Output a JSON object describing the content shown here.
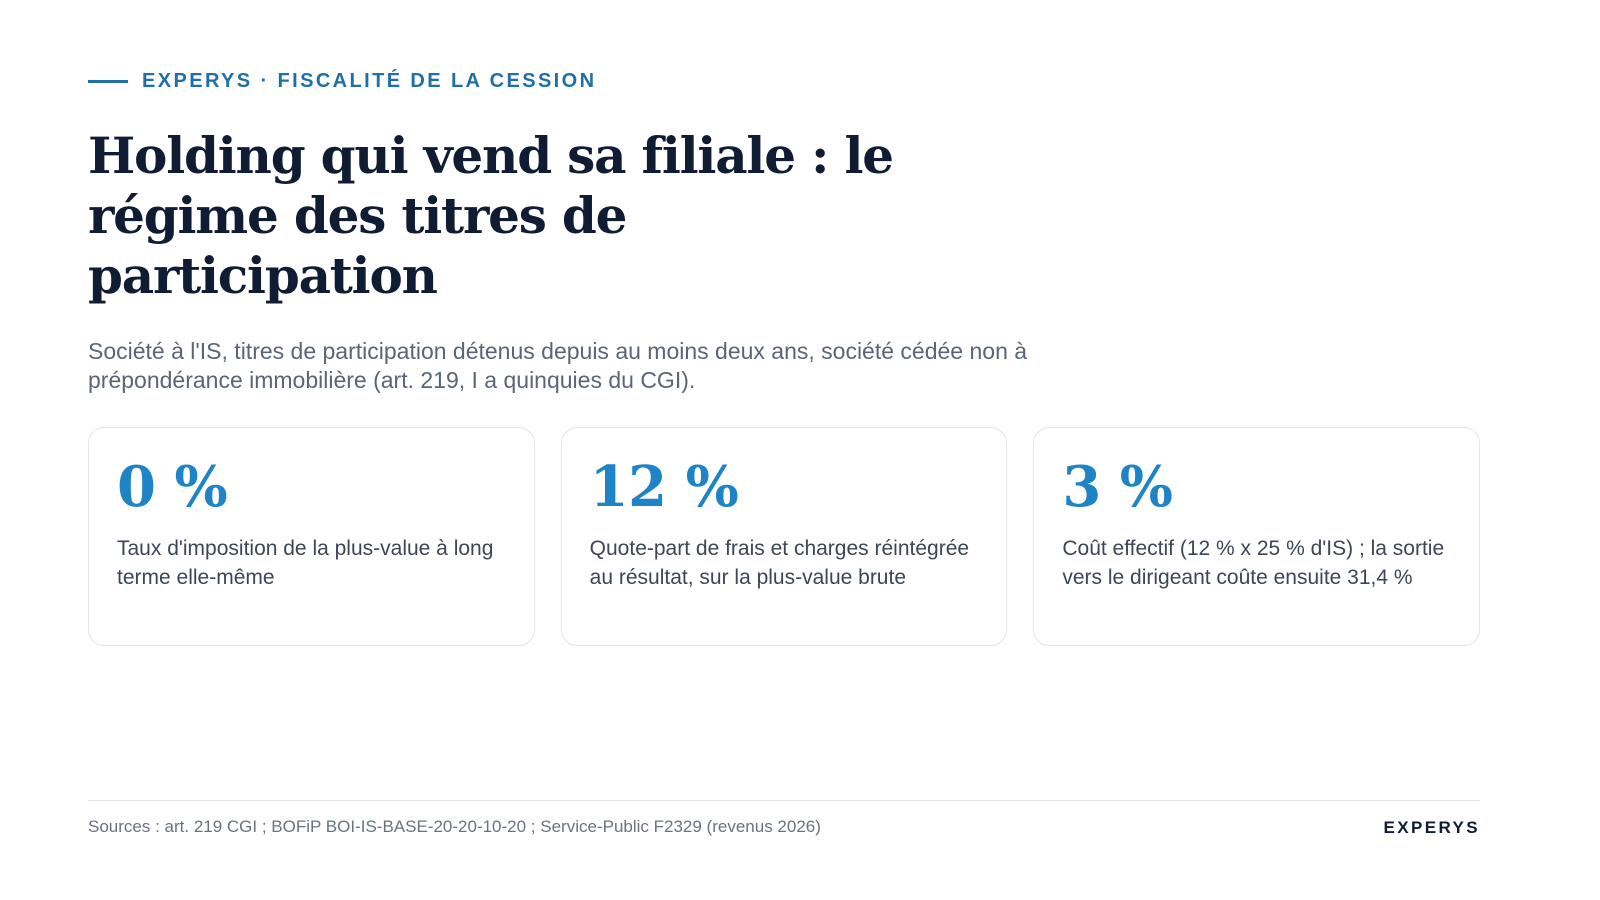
{
  "header": {
    "eyebrow": "EXPERYS · FISCALITÉ DE LA CESSION",
    "title": "Holding qui vend sa filiale : le régime des titres de participation",
    "subtitle": "Société à l'IS, titres de participation détenus depuis au moins deux ans, société cédée non à prépondérance immobilière (art. 219, I a quinquies du CGI)."
  },
  "cards": [
    {
      "value": "0 %",
      "label": "Taux d'imposition de la plus-value à long terme elle-même"
    },
    {
      "value": "12 %",
      "label": "Quote-part de frais et charges réintégrée au résultat, sur la plus-value brute"
    },
    {
      "value": "3 %",
      "label": "Coût effectif (12 % x 25 % d'IS) ; la sortie vers le dirigeant coûte ensuite 31,4 %"
    }
  ],
  "footer": {
    "sources": "Sources : art. 219 CGI ; BOFiP BOI-IS-BASE-20-20-10-20 ; Service-Public F2329 (revenus 2026)",
    "brand": "EXPERYS"
  },
  "colors": {
    "accent": "#1f6fa8",
    "value": "#1e84c6",
    "title": "#0f1c33",
    "body": "#5b6577"
  }
}
